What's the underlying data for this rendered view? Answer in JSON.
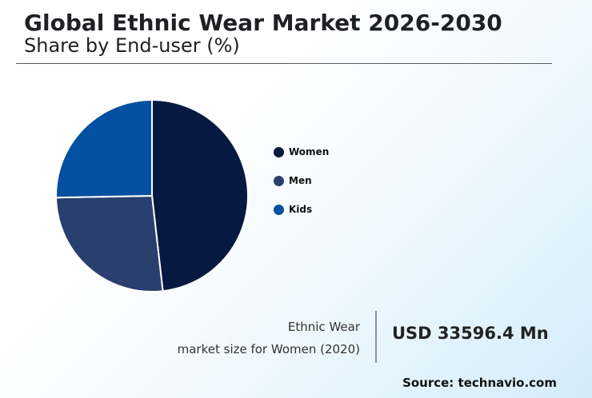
{
  "header": {
    "title": "Global Ethnic Wear Market 2026-2030",
    "subtitle": "Share by End-user (%)"
  },
  "chart_data": {
    "type": "pie",
    "title": "Global Ethnic Wear Market 2026-2030",
    "subtitle": "Share by End-user (%)",
    "categories": [
      "Women",
      "Men",
      "Kids"
    ],
    "values": [
      48.2,
      26.5,
      25.3
    ],
    "colors": [
      "#061a41",
      "#29406f",
      "#0450a0"
    ],
    "legend_position": "right"
  },
  "market_size": {
    "label_line1": "Ethnic Wear",
    "label_line2": "market size for Women (2020)",
    "value": "USD 33596.4 Mn"
  },
  "source": "Source: technavio.com"
}
